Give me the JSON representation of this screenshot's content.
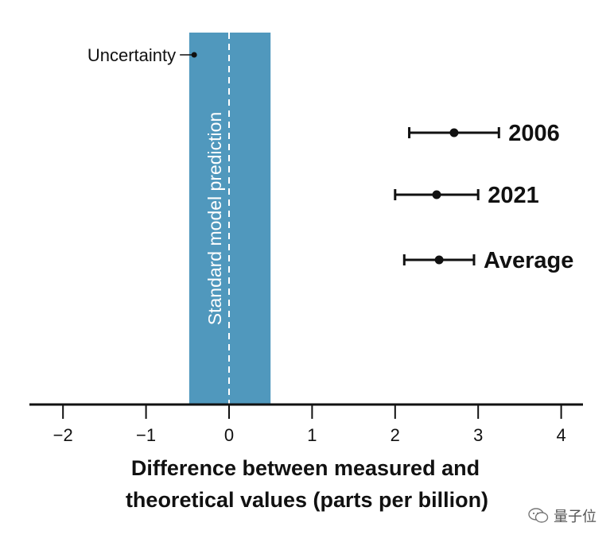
{
  "chart_data": {
    "type": "scatter",
    "xlabel_lines": [
      "Difference between measured and",
      "theoretical values (parts per billion)"
    ],
    "xlim": [
      -2.4,
      4.3
    ],
    "xticks": [
      -2,
      -1,
      0,
      1,
      2,
      3,
      4
    ],
    "xtick_labels": [
      "−2",
      "−1",
      "0",
      "1",
      "2",
      "3",
      "4"
    ],
    "reference": {
      "label": "Standard model prediction",
      "center": 0,
      "band": [
        -0.48,
        0.5
      ],
      "line_style": "dashed",
      "color": "#5098BD"
    },
    "annotation": {
      "text": "Uncertainty",
      "x": -0.42
    },
    "points": [
      {
        "label": "2006",
        "x": 2.71,
        "xerr_low": 2.17,
        "xerr_high": 3.25
      },
      {
        "label": "2021",
        "x": 2.5,
        "xerr_low": 2.0,
        "xerr_high": 3.0
      },
      {
        "label": "Average",
        "x": 2.53,
        "xerr_low": 2.11,
        "xerr_high": 2.95
      }
    ],
    "grid": false,
    "legend": "none"
  },
  "watermark": {
    "text": "量子位",
    "icon": "wechat-icon"
  }
}
